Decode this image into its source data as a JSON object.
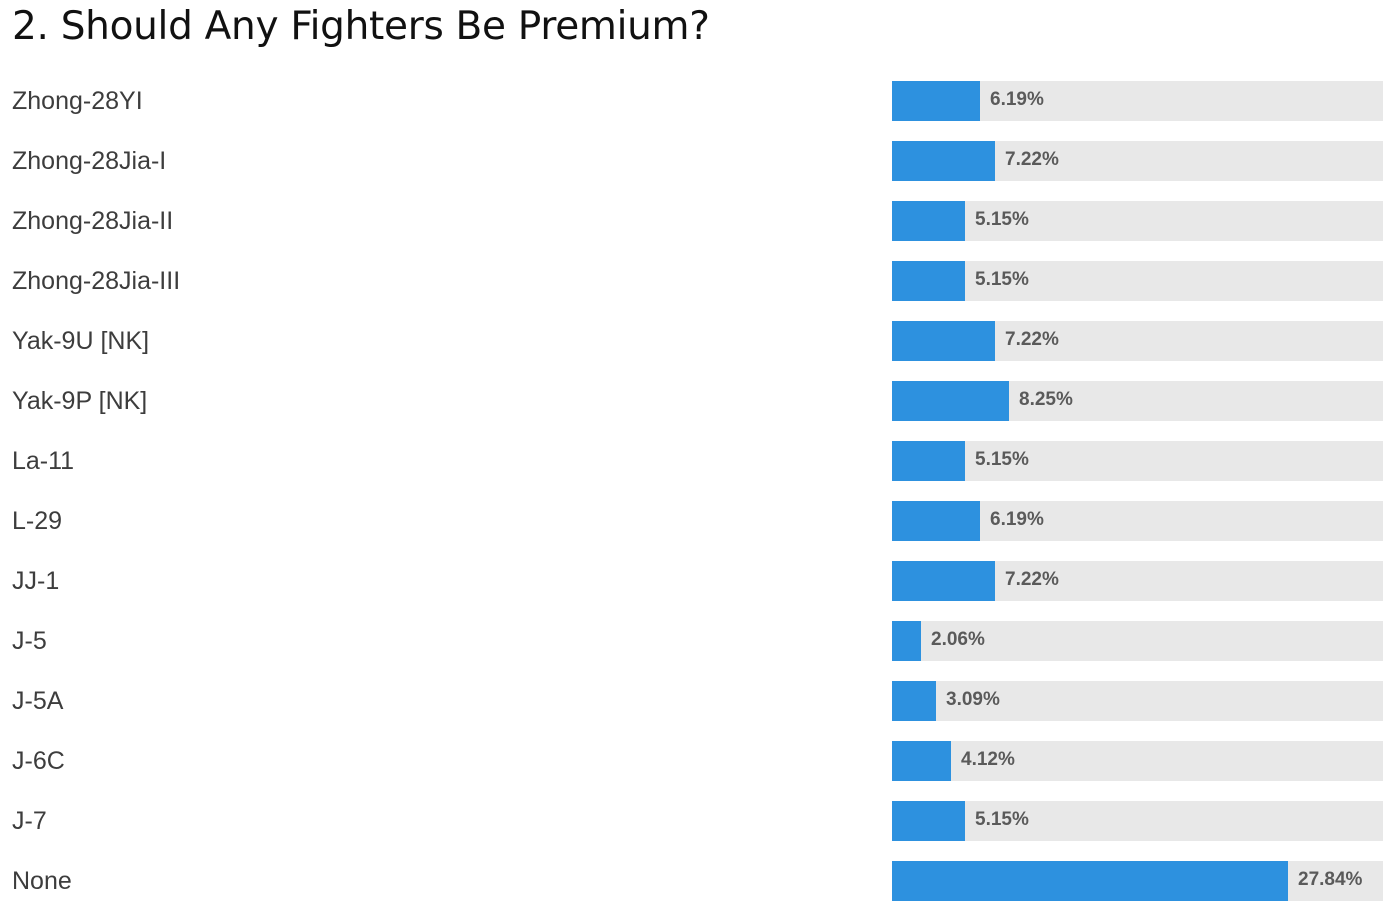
{
  "title": "2. Should Any Fighters Be Premium?",
  "colors": {
    "bar": "#2d91df",
    "track": "#e8e8e8",
    "label_text": "#3d3d3d",
    "value_text": "#5a5a5a"
  },
  "chart_data": {
    "type": "bar",
    "orientation": "horizontal",
    "title": "2. Should Any Fighters Be Premium?",
    "xlim": [
      0,
      100
    ],
    "categories": [
      "Zhong-28YI",
      "Zhong-28Jia-I",
      "Zhong-28Jia-II",
      "Zhong-28Jia-III",
      "Yak-9U [NK]",
      "Yak-9P [NK]",
      "La-11",
      "L-29",
      "JJ-1",
      "J-5",
      "J-5A",
      "J-6C",
      "J-7",
      "None"
    ],
    "values": [
      6.19,
      7.22,
      5.15,
      5.15,
      7.22,
      8.25,
      5.15,
      6.19,
      7.22,
      2.06,
      3.09,
      4.12,
      5.15,
      27.84
    ],
    "value_labels": [
      "6.19%",
      "7.22%",
      "5.15%",
      "5.15%",
      "7.22%",
      "8.25%",
      "5.15%",
      "6.19%",
      "7.22%",
      "2.06%",
      "3.09%",
      "4.12%",
      "5.15%",
      "27.84%"
    ]
  }
}
